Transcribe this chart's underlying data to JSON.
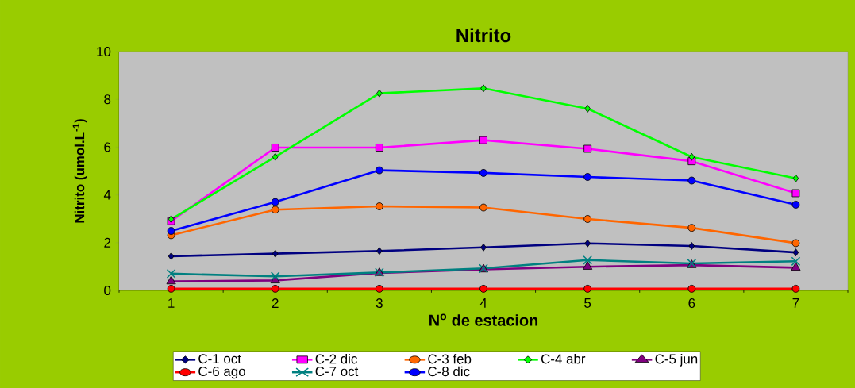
{
  "chart_data": {
    "type": "line",
    "title": "Nitrito",
    "xlabel": "N$^{o}$ de estacion",
    "ylabel": "Nitrito (umol.L$^{-1}$)",
    "categories": [
      "1",
      "2",
      "3",
      "4",
      "5",
      "6",
      "7"
    ],
    "ylim": [
      0,
      10
    ],
    "yticks": [
      0,
      2,
      4,
      6,
      8,
      10
    ],
    "grid": false,
    "legend": "bottom",
    "series": [
      {
        "name": "C-1 oct",
        "color": "#000080",
        "marker": "diamond",
        "values": [
          1.43,
          1.54,
          1.65,
          1.8,
          1.97,
          1.86,
          1.59
        ]
      },
      {
        "name": "C-2 dic",
        "color": "#ff00ff",
        "marker": "square",
        "values": [
          2.9,
          5.98,
          5.98,
          6.29,
          5.93,
          5.41,
          4.07
        ]
      },
      {
        "name": "C-3 feb",
        "color": "#ff6600",
        "marker": "circle",
        "values": [
          2.31,
          3.38,
          3.52,
          3.47,
          2.99,
          2.62,
          1.98
        ]
      },
      {
        "name": "C-4 abr",
        "color": "#00ff00",
        "marker": "diamond",
        "values": [
          2.98,
          5.59,
          8.25,
          8.46,
          7.61,
          5.59,
          4.69
        ]
      },
      {
        "name": "C-5 jun",
        "color": "#800080",
        "marker": "triangle",
        "values": [
          0.38,
          0.42,
          0.73,
          0.88,
          0.99,
          1.06,
          0.95
        ]
      },
      {
        "name": "C-6 ago",
        "color": "#ff0000",
        "marker": "circle",
        "values": [
          0.07,
          0.07,
          0.07,
          0.07,
          0.07,
          0.07,
          0.07
        ]
      },
      {
        "name": "C-7 oct",
        "color": "#008080",
        "marker": "cross",
        "values": [
          0.7,
          0.59,
          0.75,
          0.92,
          1.27,
          1.13,
          1.22
        ]
      },
      {
        "name": "C-8 dic",
        "color": "#0000ff",
        "marker": "circle",
        "values": [
          2.49,
          3.7,
          5.03,
          4.92,
          4.75,
          4.6,
          3.59
        ]
      }
    ]
  }
}
